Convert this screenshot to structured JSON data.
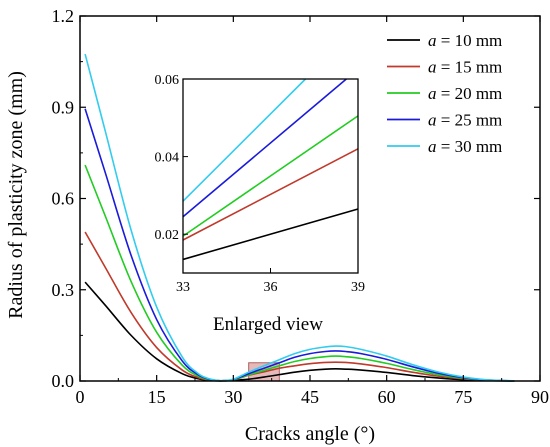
{
  "chart_data": [
    {
      "type": "line",
      "title": "",
      "xlabel": "Cracks angle (°)",
      "ylabel": "Radius of plasticity zone (mm)",
      "xlim": [
        0,
        90
      ],
      "ylim": [
        0,
        1.2
      ],
      "xticks": [
        0,
        15,
        30,
        45,
        60,
        75,
        90
      ],
      "yticks": [
        0.0,
        0.3,
        0.6,
        0.9,
        1.2
      ],
      "xtick_labels": [
        "0",
        "15",
        "30",
        "45",
        "60",
        "75",
        "90"
      ],
      "ytick_labels": [
        "0.0",
        "0.3",
        "0.6",
        "0.9",
        "1.2"
      ],
      "legend_position": "top-right",
      "grid": false,
      "series": [
        {
          "name": "a = 10 mm",
          "color": "#000000",
          "x": [
            1,
            5,
            10,
            15,
            20,
            23,
            25,
            27,
            28,
            30,
            33,
            36,
            39,
            42,
            45,
            48,
            50,
            52,
            55,
            60,
            65,
            70,
            75,
            80,
            85
          ],
          "y": [
            0.325,
            0.248,
            0.15,
            0.073,
            0.024,
            0.008,
            0.0025,
            0.0005,
            0.0005,
            0.002,
            0.006,
            0.013,
            0.021,
            0.029,
            0.035,
            0.039,
            0.04,
            0.039,
            0.036,
            0.028,
            0.018,
            0.01,
            0.004,
            0.0012,
            0.0001
          ]
        },
        {
          "name": "a = 15 mm",
          "color": "#c0392b",
          "x": [
            1,
            5,
            10,
            15,
            20,
            23,
            25,
            27,
            28,
            30,
            33,
            36,
            39,
            42,
            45,
            48,
            50,
            52,
            55,
            60,
            65,
            70,
            75,
            80,
            85
          ],
          "y": [
            0.49,
            0.372,
            0.225,
            0.11,
            0.036,
            0.012,
            0.0038,
            0.0008,
            0.0007,
            0.003,
            0.019,
            0.03,
            0.042,
            0.05,
            0.057,
            0.061,
            0.062,
            0.061,
            0.056,
            0.044,
            0.029,
            0.016,
            0.007,
            0.002,
            0.0002
          ]
        },
        {
          "name": "a = 20 mm",
          "color": "#22cc22",
          "x": [
            1,
            5,
            10,
            15,
            20,
            23,
            25,
            27,
            28,
            30,
            33,
            36,
            39,
            42,
            45,
            48,
            50,
            52,
            55,
            60,
            65,
            70,
            75,
            80,
            85
          ],
          "y": [
            0.71,
            0.54,
            0.327,
            0.16,
            0.052,
            0.017,
            0.0055,
            0.0011,
            0.001,
            0.004,
            0.02,
            0.035,
            0.05,
            0.064,
            0.074,
            0.08,
            0.082,
            0.08,
            0.074,
            0.058,
            0.038,
            0.021,
            0.009,
            0.0026,
            0.0003
          ]
        },
        {
          "name": "a = 25 mm",
          "color": "#1a1adb",
          "x": [
            1,
            5,
            10,
            15,
            20,
            23,
            25,
            27,
            28,
            30,
            33,
            36,
            39,
            42,
            45,
            48,
            50,
            52,
            55,
            60,
            65,
            70,
            75,
            80,
            85
          ],
          "y": [
            0.895,
            0.682,
            0.413,
            0.202,
            0.066,
            0.022,
            0.007,
            0.0014,
            0.0012,
            0.005,
            0.024,
            0.042,
            0.06,
            0.078,
            0.09,
            0.097,
            0.099,
            0.097,
            0.09,
            0.071,
            0.047,
            0.026,
            0.011,
            0.003,
            0.0004
          ]
        },
        {
          "name": "a = 30 mm",
          "color": "#33ccee",
          "x": [
            1,
            5,
            10,
            15,
            20,
            23,
            25,
            27,
            28,
            30,
            33,
            36,
            39,
            42,
            45,
            48,
            50,
            52,
            55,
            60,
            65,
            70,
            75,
            80,
            85
          ],
          "y": [
            1.075,
            0.818,
            0.496,
            0.243,
            0.079,
            0.026,
            0.0085,
            0.0017,
            0.0015,
            0.006,
            0.029,
            0.05,
            0.07,
            0.09,
            0.104,
            0.112,
            0.115,
            0.113,
            0.104,
            0.082,
            0.054,
            0.03,
            0.013,
            0.0035,
            0.0005
          ]
        }
      ]
    },
    {
      "type": "line",
      "title": "Enlarged view",
      "xlim": [
        33,
        39
      ],
      "ylim": [
        0.01,
        0.06
      ],
      "xticks": [
        33,
        36,
        39
      ],
      "yticks": [
        0.02,
        0.04,
        0.06
      ],
      "xtick_labels": [
        "33",
        "36",
        "39"
      ],
      "ytick_labels": [
        "0.02",
        "0.04",
        "0.06"
      ],
      "series": [
        {
          "name": "a = 10 mm",
          "color": "#000000",
          "x": [
            33,
            39
          ],
          "y": [
            0.0135,
            0.0265
          ]
        },
        {
          "name": "a = 15 mm",
          "color": "#c0392b",
          "x": [
            33,
            39
          ],
          "y": [
            0.0185,
            0.042
          ]
        },
        {
          "name": "a = 20 mm",
          "color": "#22cc22",
          "x": [
            33,
            39
          ],
          "y": [
            0.0195,
            0.0505
          ]
        },
        {
          "name": "a = 25 mm",
          "color": "#1a1adb",
          "x": [
            33,
            38.6
          ],
          "y": [
            0.0245,
            0.06
          ]
        },
        {
          "name": "a = 30 mm",
          "color": "#33ccee",
          "x": [
            33,
            37.2
          ],
          "y": [
            0.0285,
            0.06
          ]
        }
      ]
    }
  ],
  "legend": [
    {
      "prefix": "a",
      "suffix": " = 10 mm"
    },
    {
      "prefix": "a",
      "suffix": " = 15 mm"
    },
    {
      "prefix": "a",
      "suffix": " = 20 mm"
    },
    {
      "prefix": "a",
      "suffix": " = 25 mm"
    },
    {
      "prefix": "a",
      "suffix": " = 30 mm"
    }
  ],
  "inset_label": "Enlarged view",
  "highlight_box": {
    "x": [
      33,
      39
    ],
    "y": [
      0.0,
      0.06
    ],
    "color": "#d08080"
  }
}
